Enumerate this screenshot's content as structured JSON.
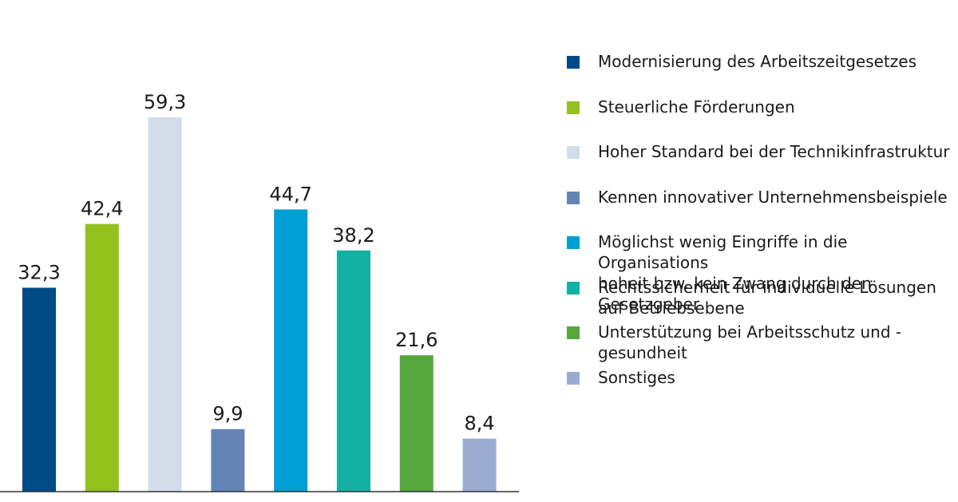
{
  "chart_data": {
    "type": "bar",
    "categories": [
      "Modernisierung des Arbeitszeitgesetzes",
      "Steuerliche Förderungen",
      "Hoher Standard bei der Technikinfrastruktur",
      "Kennen innovativer Unternehmensbeispiele",
      "Möglichst wenig Eingriffe in die Organisations\nhoheit bzw. kein Zwang durch den Gesetzgeber",
      "Rechtssicherheit für individuelle Lösungen\nauf Betriebsebene",
      "Unterstützung bei Arbeitsschutz und -\ngesundheit",
      "Sonstiges"
    ],
    "values": [
      32.3,
      42.4,
      59.3,
      9.9,
      44.7,
      38.2,
      21.6,
      8.4
    ],
    "value_labels": [
      "32,3",
      "42,4",
      "59,3",
      "9,9",
      "44,7",
      "38,2",
      "21,6",
      "8,4"
    ],
    "colors": [
      "#004b87",
      "#95c11f",
      "#d2dde9",
      "#6584b5",
      "#009fd3",
      "#13b1a3",
      "#55a73e",
      "#9aadd1"
    ],
    "ylim": [
      0,
      67
    ],
    "grid": false,
    "legend_position": "right",
    "title": "",
    "xlabel": "",
    "ylabel": ""
  }
}
